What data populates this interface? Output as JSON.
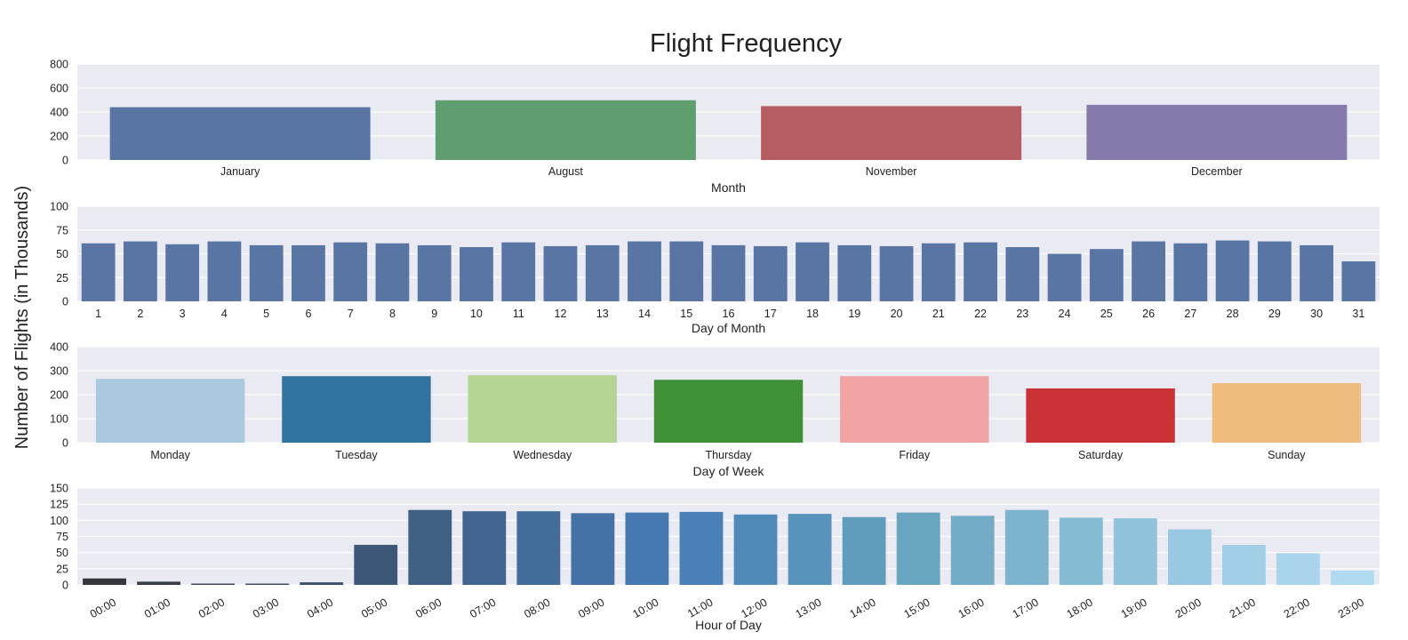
{
  "title": "Flight Frequency",
  "ylabel": "Number of Flights (in Thousands)",
  "chart_data": [
    {
      "type": "bar",
      "xlabel": "Month",
      "categories": [
        "January",
        "August",
        "November",
        "December"
      ],
      "values": [
        440,
        498,
        449,
        460
      ],
      "ylim": [
        0,
        800
      ],
      "yticks": [
        0,
        200,
        400,
        600,
        800
      ],
      "colors": [
        "#5975a4",
        "#5f9e6e",
        "#b55d60",
        "#857aab"
      ],
      "grid": true
    },
    {
      "type": "bar",
      "xlabel": "Day of Month",
      "categories": [
        "1",
        "2",
        "3",
        "4",
        "5",
        "6",
        "7",
        "8",
        "9",
        "10",
        "11",
        "12",
        "13",
        "14",
        "15",
        "16",
        "17",
        "18",
        "19",
        "20",
        "21",
        "22",
        "23",
        "24",
        "25",
        "26",
        "27",
        "28",
        "29",
        "30",
        "31"
      ],
      "values": [
        61,
        63,
        60,
        63,
        59,
        59,
        62,
        61,
        59,
        57,
        62,
        58,
        59,
        63,
        63,
        59,
        58,
        62,
        59,
        58,
        61,
        62,
        57,
        50,
        55,
        63,
        61,
        64,
        63,
        59,
        42
      ],
      "ylim": [
        0,
        100
      ],
      "yticks": [
        0,
        25,
        50,
        75,
        100
      ],
      "colors": [
        "#5975a4"
      ],
      "grid": true
    },
    {
      "type": "bar",
      "xlabel": "Day of Week",
      "categories": [
        "Monday",
        "Tuesday",
        "Wednesday",
        "Thursday",
        "Friday",
        "Saturday",
        "Sunday"
      ],
      "values": [
        266,
        277,
        281,
        262,
        277,
        226,
        248
      ],
      "ylim": [
        0,
        400
      ],
      "yticks": [
        0,
        100,
        200,
        300,
        400
      ],
      "colors": [
        "#abc9de",
        "#3274a1",
        "#b4d493",
        "#3e9137",
        "#f0a4a3",
        "#c93134",
        "#eebd7d"
      ],
      "grid": true
    },
    {
      "type": "bar",
      "xlabel": "Hour of Day",
      "categories": [
        "00:00",
        "01:00",
        "02:00",
        "03:00",
        "04:00",
        "05:00",
        "06:00",
        "07:00",
        "08:00",
        "09:00",
        "10:00",
        "11:00",
        "12:00",
        "13:00",
        "14:00",
        "15:00",
        "16:00",
        "17:00",
        "18:00",
        "19:00",
        "20:00",
        "21:00",
        "22:00",
        "23:00"
      ],
      "values": [
        10,
        5,
        2,
        2,
        4,
        62,
        116,
        114,
        114,
        111,
        112,
        113,
        109,
        110,
        105,
        112,
        107,
        116,
        104,
        103,
        86,
        62,
        49,
        22
      ],
      "ylim": [
        0,
        150
      ],
      "yticks": [
        0,
        25,
        50,
        75,
        100,
        125,
        150
      ],
      "colors": [
        "#34383d",
        "#363e48",
        "#384554",
        "#3a4b5f",
        "#3b526b",
        "#3d5877",
        "#3f5f83",
        "#41658e",
        "#426c9a",
        "#4472a6",
        "#4679b2",
        "#4880b7",
        "#508ab9",
        "#5893bb",
        "#609dbd",
        "#68a6bf",
        "#72adc6",
        "#7cb4cd",
        "#86bbd4",
        "#8fc2db",
        "#98c9e2",
        "#a0cfe7",
        "#a8d5ec",
        "#b0daf0"
      ],
      "grid": true
    }
  ]
}
